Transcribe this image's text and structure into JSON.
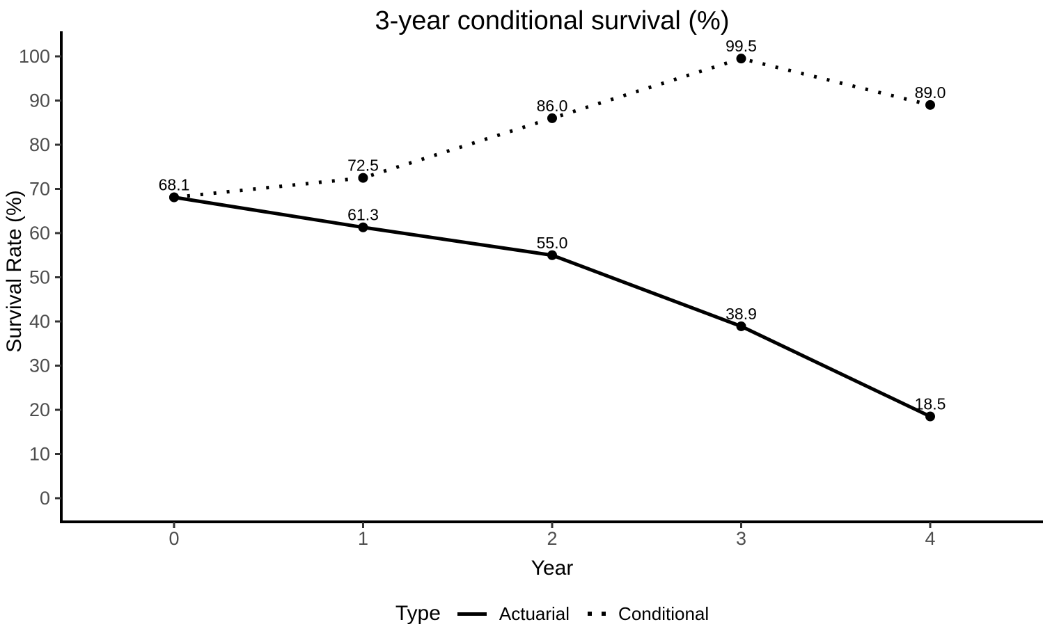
{
  "chart_data": {
    "type": "line",
    "title": "3-year conditional survival (%)",
    "xlabel": "Year",
    "ylabel": "Survival Rate (%)",
    "x": [
      0,
      1,
      2,
      3,
      4
    ],
    "x_tick_labels": [
      "0",
      "1",
      "2",
      "3",
      "4"
    ],
    "y_ticks": [
      0,
      10,
      20,
      30,
      40,
      50,
      60,
      70,
      80,
      90,
      100
    ],
    "ylim": [
      0,
      105
    ],
    "grid": false,
    "background": "#ffffff",
    "legend_title": "Type",
    "legend_position": "bottom",
    "series": [
      {
        "name": "Actuarial",
        "style": "solid",
        "color": "#000000",
        "values": [
          68.1,
          61.3,
          55.0,
          38.9,
          18.5
        ],
        "labels": [
          "68.1",
          "61.3",
          "55.0",
          "38.9",
          "18.5"
        ]
      },
      {
        "name": "Conditional",
        "style": "dotted",
        "color": "#000000",
        "values": [
          68.1,
          72.5,
          86.0,
          99.5,
          89.0
        ],
        "labels": [
          "",
          "72.5",
          "86.0",
          "99.5",
          "89.0"
        ]
      }
    ]
  },
  "colors": {
    "line": "#000000",
    "point": "#000000",
    "data_label": "#000000",
    "axis_line": "#000000",
    "tick_mark": "#333333",
    "tick_label": "#4d4d4d",
    "axis_title": "#000000",
    "title": "#000000"
  }
}
